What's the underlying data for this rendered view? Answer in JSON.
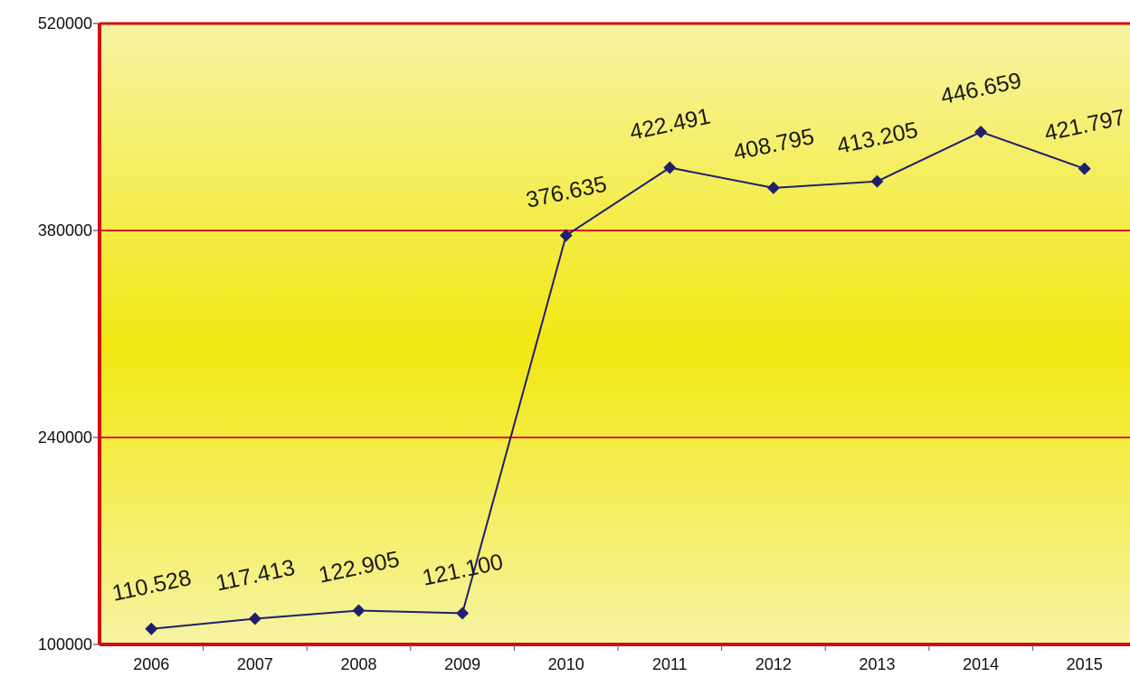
{
  "chart_data": {
    "type": "line",
    "title": "",
    "xlabel": "",
    "ylabel": "",
    "categories": [
      "2006",
      "2007",
      "2008",
      "2009",
      "2010",
      "2011",
      "2012",
      "2013",
      "2014",
      "2015"
    ],
    "series": [
      {
        "values": [
          110528,
          117413,
          122905,
          121100,
          376635,
          422491,
          408795,
          413205,
          446659,
          421797
        ],
        "data_labels": [
          "110.528",
          "117.413",
          "122.905",
          "121.100",
          "376.635",
          "422.491",
          "408.795",
          "413.205",
          "446.659",
          "421.797"
        ],
        "color": "#1f1f6e",
        "marker": "diamond"
      }
    ],
    "yticks": [
      "100000",
      "240000",
      "380000",
      "520000"
    ],
    "ylim": [
      100000,
      520000
    ],
    "grid": true,
    "legend": "none",
    "colors": {
      "gridline": "#e8141e",
      "axis": "#d40f0f",
      "plot_fill_edge": "#f7f3a3",
      "plot_fill_center": "#f2e812"
    }
  }
}
